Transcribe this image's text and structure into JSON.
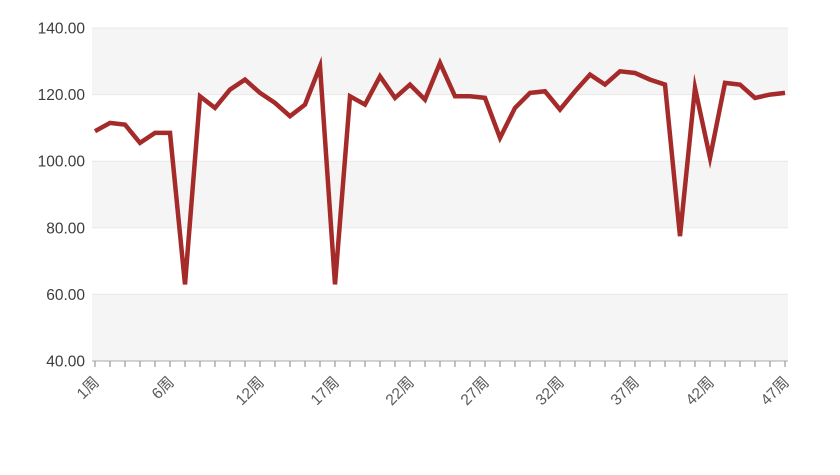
{
  "chart_data": {
    "type": "line",
    "title": "",
    "legend": "none",
    "grid": "horizontal-bands",
    "x_unit": "周",
    "x": [
      1,
      2,
      3,
      4,
      5,
      6,
      7,
      8,
      9,
      10,
      11,
      12,
      13,
      14,
      15,
      16,
      17,
      18,
      19,
      20,
      21,
      22,
      23,
      24,
      25,
      26,
      27,
      28,
      29,
      30,
      31,
      32,
      33,
      34,
      35,
      36,
      37,
      38,
      39,
      40,
      41,
      42,
      43,
      44,
      45,
      46,
      47
    ],
    "values": [
      109,
      111.5,
      111,
      105.5,
      108.5,
      108.5,
      63,
      119.5,
      116,
      121.5,
      124.5,
      120.5,
      117.5,
      113.5,
      117,
      128.5,
      63,
      119.5,
      117,
      125.5,
      119,
      123,
      118.5,
      129.5,
      119.5,
      119.5,
      119,
      107,
      116,
      120.5,
      121,
      115.5,
      121,
      126,
      123,
      127,
      126.5,
      124.5,
      123,
      77.5,
      122,
      101,
      123.5,
      123,
      119,
      120,
      120.5
    ],
    "labeled_x_ticks": [
      1,
      6,
      12,
      17,
      22,
      27,
      32,
      37,
      42,
      47
    ],
    "x_tick_labels": [
      "1周",
      "6周",
      "12周",
      "17周",
      "22周",
      "27周",
      "32周",
      "37周",
      "42周",
      "47周"
    ],
    "y_ticks": [
      40,
      60,
      80,
      100,
      120,
      140
    ],
    "y_tick_labels": [
      "40.00",
      "60.00",
      "80.00",
      "100.00",
      "120.00",
      "140.00"
    ],
    "ylim": [
      40,
      140
    ]
  },
  "colors": {
    "line": "#a52a2a",
    "band": "#f5f5f5",
    "gridline": "#e8e8e8",
    "axis_line": "#bbbbbb",
    "tick": "#999999",
    "y_label_text": "#3d3d3d",
    "x_label_text": "#595959",
    "background": "#ffffff"
  }
}
